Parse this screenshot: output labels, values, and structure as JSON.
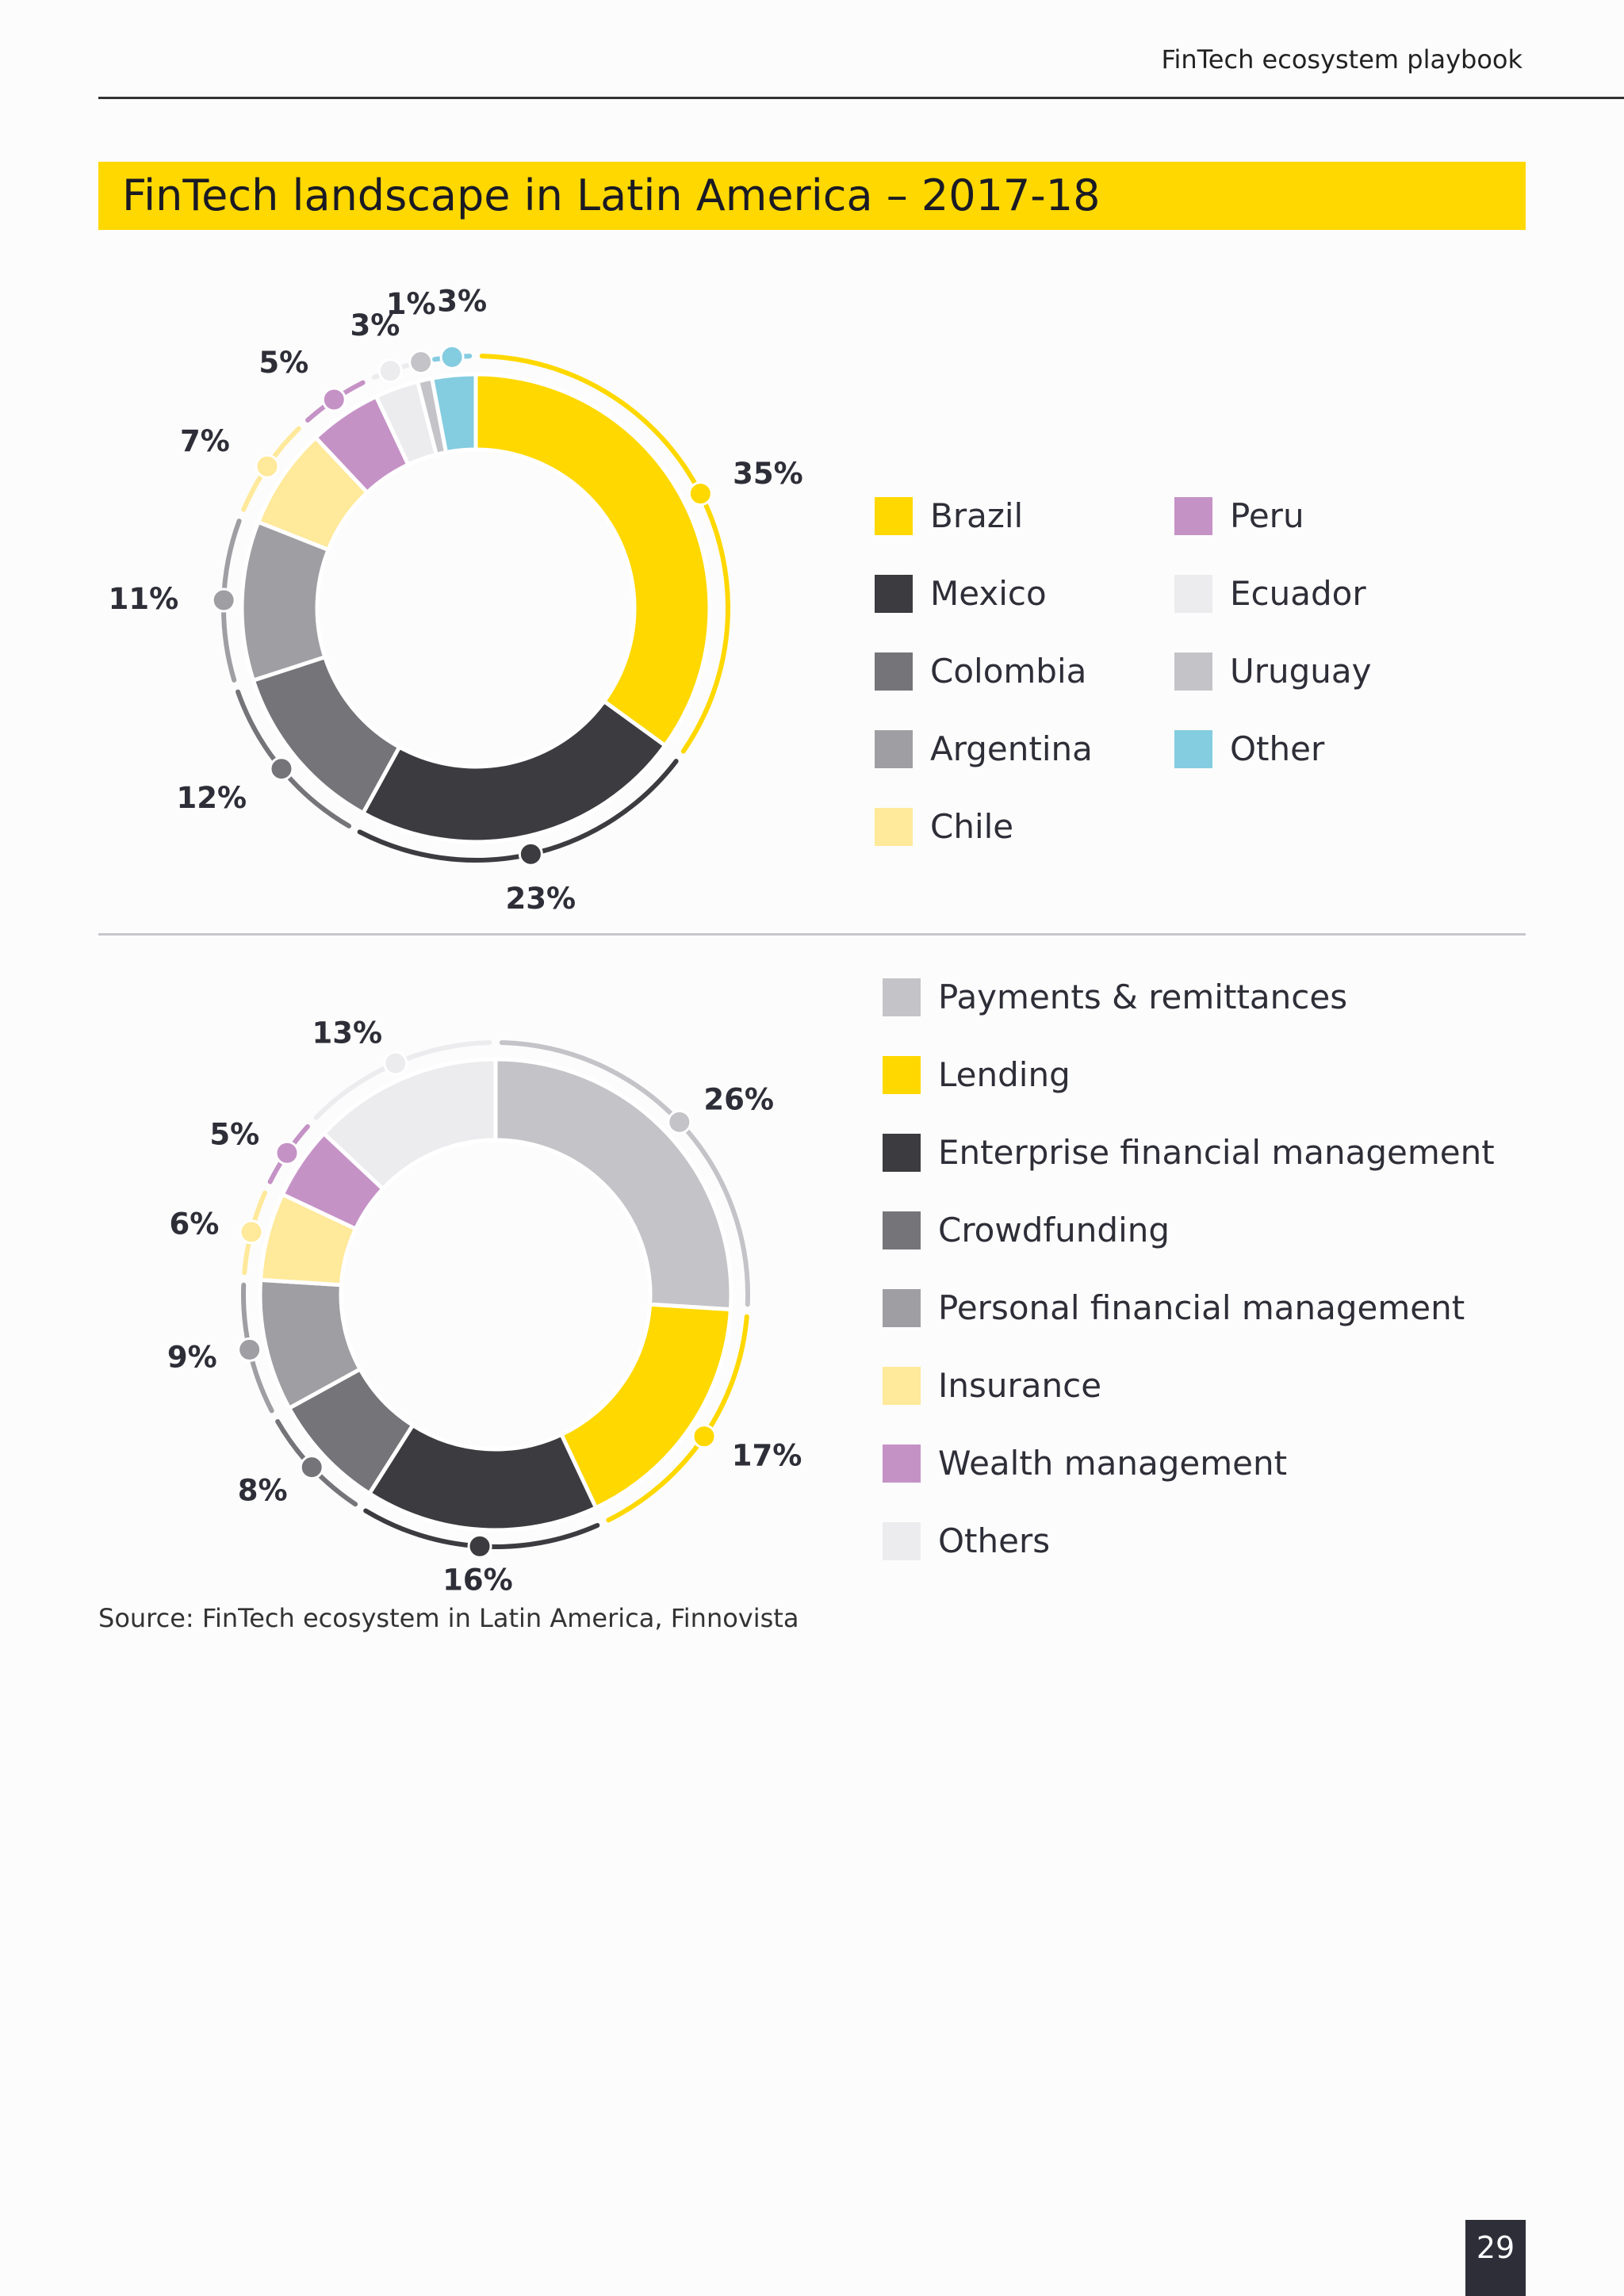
{
  "header": {
    "title": "FinTech ecosystem playbook"
  },
  "section_title": "FinTech landscape in Latin America – 2017-18",
  "chart_data": [
    {
      "type": "pie",
      "categories": [
        "Brazil",
        "Mexico",
        "Colombia",
        "Argentina",
        "Chile",
        "Peru",
        "Ecuador",
        "Uruguay",
        "Other"
      ],
      "values": [
        35,
        23,
        12,
        11,
        7,
        5,
        3,
        1,
        3
      ],
      "labels": [
        "35%",
        "23%",
        "12%",
        "11%",
        "7%",
        "5%",
        "3%",
        "1%",
        "3%"
      ],
      "colors": [
        "#ffd800",
        "#3c3b40",
        "#747479",
        "#9f9ea3",
        "#ffe99a",
        "#c592c6",
        "#ececef",
        "#c4c3c8",
        "#84cce0"
      ],
      "legend_position": "right"
    },
    {
      "type": "pie",
      "categories": [
        "Payments & remittances",
        "Lending",
        "Enterprise financial management",
        "Crowdfunding",
        "Personal financial management",
        "Insurance",
        "Wealth management",
        "Others"
      ],
      "values": [
        26,
        17,
        16,
        8,
        9,
        6,
        5,
        13
      ],
      "labels": [
        "26%",
        "17%",
        "16%",
        "8%",
        "9%",
        "6%",
        "5%",
        "13%"
      ],
      "colors": [
        "#c4c3c8",
        "#ffd800",
        "#3c3b40",
        "#747479",
        "#9f9ea3",
        "#ffe99a",
        "#c592c6",
        "#ececef"
      ],
      "legend_position": "right"
    }
  ],
  "source": "Source: FinTech ecosystem in Latin America, Finnovista",
  "page_number": "29"
}
